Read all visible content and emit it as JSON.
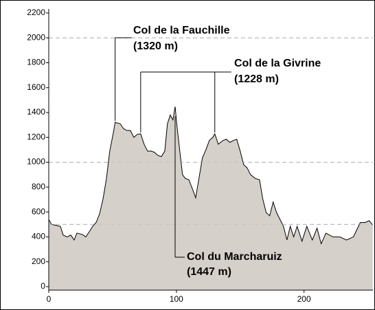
{
  "chart_data": {
    "type": "area",
    "color": "#d6d0ca",
    "x": [
      0,
      2.2,
      4.8,
      9.1,
      11.3,
      14.5,
      17.2,
      19.9,
      22,
      26.3,
      29,
      31.7,
      34.4,
      37.1,
      39.8,
      42.5,
      45.2,
      47.8,
      50.5,
      52,
      55.9,
      58.6,
      61.3,
      64,
      66.7,
      69.4,
      72,
      74.7,
      77.4,
      80.1,
      82.8,
      85.5,
      88.2,
      90.9,
      93,
      95.2,
      97.3,
      99,
      100.5,
      102.7,
      104.8,
      107,
      109.7,
      112.4,
      115.1,
      117.7,
      120.4,
      123.1,
      125.8,
      128.5,
      130.1,
      132.8,
      136.6,
      139.2,
      141.9,
      144.6,
      147.3,
      150,
      152.7,
      155.4,
      158.1,
      161.8,
      165.1,
      167.7,
      170.4,
      173.1,
      175.8,
      178.5,
      181.2,
      183.9,
      186.6,
      189.2,
      191.9,
      194.6,
      198.4,
      202.2,
      206.5,
      210.2,
      213.4,
      217.2,
      222.6,
      228,
      233.3,
      238.7,
      244.1,
      247.8,
      251,
      253.8
    ],
    "values": [
      540,
      500,
      495,
      485,
      415,
      400,
      415,
      375,
      430,
      420,
      400,
      440,
      485,
      515,
      585,
      705,
      870,
      1090,
      1230,
      1320,
      1310,
      1270,
      1255,
      1255,
      1200,
      1225,
      1228,
      1145,
      1090,
      1090,
      1080,
      1055,
      1045,
      1090,
      1310,
      1380,
      1340,
      1447,
      1285,
      1090,
      900,
      870,
      860,
      790,
      715,
      870,
      1035,
      1100,
      1175,
      1200,
      1228,
      1145,
      1175,
      1185,
      1160,
      1175,
      1185,
      1090,
      980,
      955,
      900,
      870,
      860,
      705,
      595,
      570,
      680,
      595,
      540,
      485,
      375,
      485,
      400,
      485,
      365,
      485,
      375,
      470,
      345,
      430,
      400,
      400,
      375,
      400,
      515,
      515,
      530,
      495
    ],
    "xlim": [
      0,
      254
    ],
    "xticks": [
      0,
      100,
      200
    ],
    "ylim": [
      -28,
      2277
    ],
    "yticks": [
      0,
      200,
      400,
      600,
      800,
      1000,
      1200,
      1400,
      1600,
      1800,
      2000,
      2200
    ],
    "grid_lines": [
      500,
      1000,
      2000
    ],
    "annotations": [
      {
        "name": "Col de la Fauchille",
        "label": "(1320 m)",
        "x": [
          52
        ]
      },
      {
        "name": "Col de la Givrine",
        "label": "(1228 m)",
        "x": [
          72,
          130.1
        ]
      },
      {
        "name": "Col du Marcharuiz",
        "label": "(1447 m)",
        "x": [
          99
        ]
      }
    ]
  }
}
